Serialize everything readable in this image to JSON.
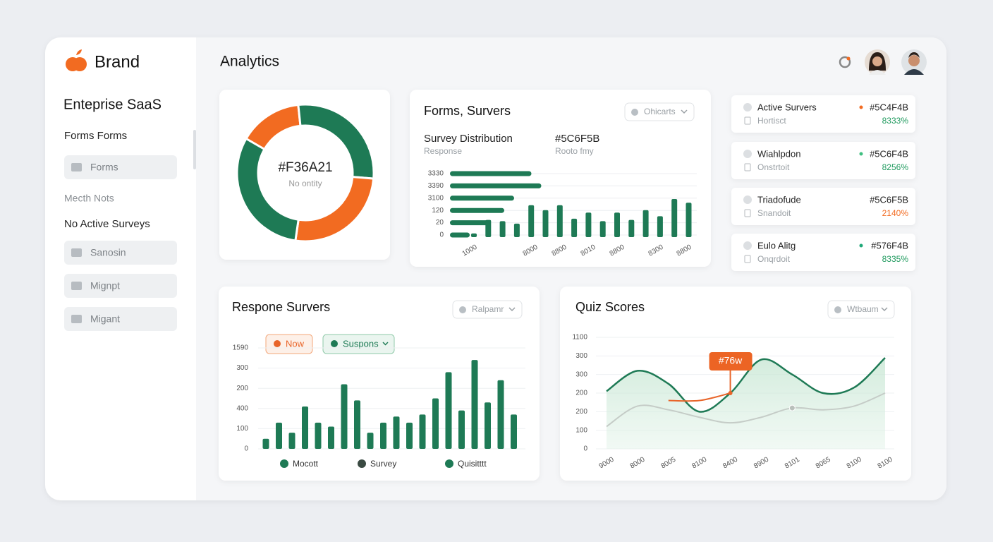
{
  "sidebar": {
    "brand": "Brand",
    "workspace": "Enteprise SaaS",
    "heading": "Forms Forms",
    "menu1": [
      "Forms"
    ],
    "caption": "Mecth Nots",
    "subheading": "No Active Surveys",
    "menu2": [
      "Sanosin",
      "Mignpt",
      "Migant"
    ]
  },
  "header": {
    "title": "Analytics"
  },
  "list_items": [
    {
      "name": "Active Survers",
      "dot": "#f26b21",
      "code": "#5C4F4B",
      "sub": "Hortisct",
      "pct": "8333%",
      "pct_color": "#1f9a5e"
    },
    {
      "name": "Wiahlpdon",
      "dot": "#3fbf80",
      "code": "#5C6F4B",
      "sub": "Onstrtoit",
      "pct": "8256%",
      "pct_color": "#1f9a5e"
    },
    {
      "name": "Triadofude",
      "dot": null,
      "code": "#5C6F5B",
      "sub": "Snandoit",
      "pct": "2140%",
      "pct_color": "#f26b21"
    },
    {
      "name": "Eulo Alitg",
      "dot": "#1fa878",
      "code": "#576F4B",
      "sub": "Onqrdoit",
      "pct": "8335%",
      "pct_color": "#1f9a5e"
    }
  ],
  "chart_data": [
    {
      "type": "donut",
      "center_label": "#F36A21",
      "center_sublabel": "No ontity",
      "values": [
        15,
        28,
        26,
        31
      ],
      "colors": [
        "#f26b21",
        "#1e7a55",
        "#f26b21",
        "#1e7a55"
      ]
    },
    {
      "type": "bar-combo",
      "title": "Forms, Survers",
      "dropdown": "Ohicarts",
      "subtitle_blocks": [
        {
          "title": "Survey Distribution",
          "caption": "Response"
        },
        {
          "title": "#5C6F5B",
          "caption": "Rooto fmy"
        }
      ],
      "hbars": {
        "values": [
          33,
          37,
          26,
          22,
          16,
          8
        ],
        "xlim": [
          0,
          100
        ]
      },
      "values": [
        0.3,
        1.4,
        1.3,
        1.1,
        2.6,
        2.2,
        2.6,
        1.5,
        2.0,
        1.3,
        2.0,
        1.4,
        2.2,
        1.7,
        3.1,
        2.8
      ],
      "ylim": [
        0,
        5
      ],
      "yticks": [
        0,
        {
          "value": 1,
          "label": "20"
        },
        {
          "value": 2,
          "label": "120"
        },
        {
          "value": 3,
          "label": "3100"
        },
        {
          "value": 4,
          "label": "3390"
        },
        {
          "value": 5,
          "label": "3330"
        }
      ],
      "xlabels": [
        "1000",
        "8000",
        "8800",
        "8010",
        "8800",
        "8300",
        "8800"
      ],
      "color": "#1e7a55",
      "grid": true
    },
    {
      "type": "bar",
      "title": "Respone Survers",
      "dropdown": "Ralpamr",
      "buttons": [
        "Now",
        "Suspons"
      ],
      "values": [
        0.5,
        1.3,
        0.8,
        2.1,
        1.3,
        1.1,
        3.2,
        2.4,
        0.8,
        1.3,
        1.6,
        1.3,
        1.7,
        2.5,
        3.8,
        1.9,
        4.4,
        2.3,
        3.4,
        1.7
      ],
      "ylim": [
        0,
        5
      ],
      "yticks": [
        0,
        {
          "value": 1,
          "label": "100"
        },
        {
          "value": 2,
          "label": "400"
        },
        {
          "value": 3,
          "label": "200"
        },
        {
          "value": 4,
          "label": "300"
        },
        {
          "value": 5,
          "label": "1590"
        }
      ],
      "color": "#1e7a55",
      "grid": true,
      "legend": [
        {
          "name": "Mocott",
          "color": "#1e7a55"
        },
        {
          "name": "Survey",
          "color": "#3a4a42"
        },
        {
          "name": "Quisitttt",
          "color": "#1e7a55"
        }
      ]
    },
    {
      "type": "line",
      "title": "Quiz Scores",
      "dropdown": "Wtbaum",
      "categories": [
        "9000",
        "8000",
        "8005",
        "8100",
        "8400",
        "8900",
        "8101",
        "8065",
        "8100",
        "8100"
      ],
      "series": [
        {
          "color": "#1e7a55",
          "values": [
            3.1,
            4.2,
            3.5,
            2.0,
            3.0,
            4.8,
            4.0,
            3.0,
            3.3,
            4.9
          ]
        },
        {
          "color": "#c5ccc7",
          "values": [
            1.2,
            2.3,
            2.1,
            1.7,
            1.4,
            1.7,
            2.2,
            2.1,
            2.3,
            3.0
          ]
        },
        {
          "color": "#e8652a",
          "values": [
            null,
            null,
            2.6,
            2.6,
            3.0,
            null,
            null,
            null,
            null,
            null
          ]
        }
      ],
      "annotation": "#76w",
      "ylim": [
        0,
        6
      ],
      "yticks": [
        0,
        {
          "value": 1,
          "label": "100"
        },
        {
          "value": 2,
          "label": "200"
        },
        {
          "value": 3,
          "label": "200"
        },
        {
          "value": 4,
          "label": "300"
        },
        {
          "value": 5,
          "label": "300"
        },
        {
          "value": 6,
          "label": "1100"
        }
      ],
      "grid": true
    }
  ]
}
